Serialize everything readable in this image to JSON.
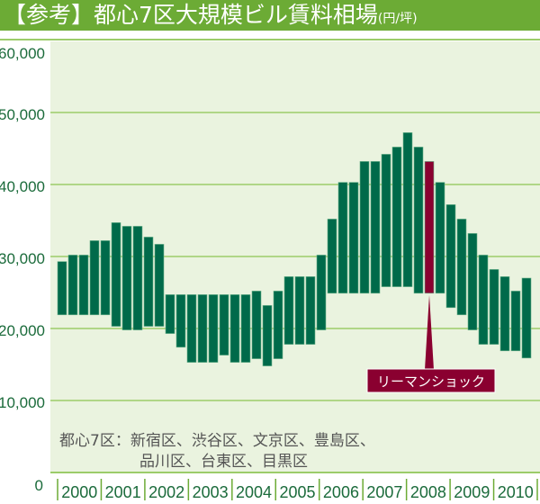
{
  "title": "【参考】都心7区大規模ビル賃料相場",
  "title_unit": "(円/坪)",
  "note_lines": [
    "都心7区：新宿区、渋谷区、文京区、豊島区、",
    "品川区、台東区、目黒区"
  ],
  "annotation": "リーマンショック",
  "colors": {
    "title_bg": "#6cab35",
    "plot_bg": "#eaf3df",
    "grid": "#9ccc6a",
    "bar": "#006a4a",
    "highlight": "#8a0030"
  },
  "chart_data": {
    "type": "bar",
    "subtype": "floating-range",
    "title": "【参考】都心7区大規模ビル賃料相場(円/坪)",
    "ylim": [
      0,
      60000
    ],
    "yticks": [
      0,
      10000,
      20000,
      30000,
      40000,
      50000,
      60000
    ],
    "ytick_labels": [
      "0",
      "10,000",
      "20,000",
      "30,000",
      "40,000",
      "50,000",
      "60,000"
    ],
    "categories": [
      "2000",
      "2001",
      "2002",
      "2003",
      "2004",
      "2005",
      "2006",
      "2007",
      "2008",
      "2009",
      "2010"
    ],
    "bars_per_category": 4,
    "grid": true,
    "highlight_index": 34,
    "low": [
      21900,
      21900,
      21900,
      21900,
      21900,
      20300,
      19800,
      19800,
      20300,
      20300,
      19300,
      17400,
      15300,
      15300,
      15300,
      16300,
      15300,
      15300,
      15800,
      14800,
      15800,
      17800,
      17800,
      17800,
      19800,
      24900,
      24900,
      24900,
      24900,
      24900,
      25800,
      25800,
      25800,
      24900,
      24900,
      24900,
      22900,
      21900,
      19800,
      17800,
      17800,
      16900,
      16900,
      15900
    ],
    "high": [
      29300,
      30200,
      30200,
      32200,
      32200,
      34700,
      34200,
      34200,
      32700,
      31700,
      24700,
      24700,
      24700,
      24700,
      24700,
      24700,
      24700,
      24700,
      25200,
      23200,
      25200,
      27200,
      27200,
      27200,
      30200,
      35200,
      40300,
      40300,
      43200,
      43200,
      44200,
      45200,
      47200,
      45200,
      43200,
      40300,
      37200,
      35200,
      33200,
      30200,
      28200,
      27200,
      25200,
      27000
    ]
  }
}
